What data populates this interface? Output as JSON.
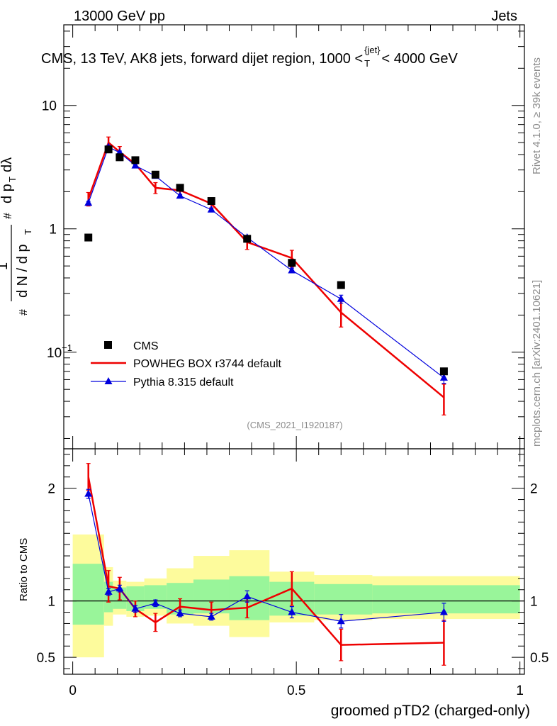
{
  "header": {
    "left": "13000 GeV pp",
    "right": "Jets"
  },
  "side_labels": {
    "rivet": "Rivet 4.1.0, ≥ 39k events",
    "mcplots": "mcplots.cern.ch [arXiv:2401.10621]"
  },
  "watermark": "(CMS_2021_I1920187)",
  "colors": {
    "cms": "#000000",
    "powheg": "#ee0000",
    "pythia": "#0000dd",
    "band_inner": "#99f59a",
    "band_outer": "#fdfb9c"
  },
  "chart_data": [
    {
      "type": "line",
      "title": "CMS, 13 TeV, AK8 jets, forward dijet region, 1000 < p_T^{jet} < 4000 GeV",
      "title_main": "CMS, 13 TeV, AK8 jets, forward dijet region, 1000 <",
      "title_sup": "{jet}",
      "title_sub": "T",
      "title_end": "< 4000 GeV",
      "ylabel": "1/(dN/dp_T) d²N/(dp_T dλ)",
      "yscale": "log",
      "ylim": [
        0.0165,
        45
      ],
      "xlim": [
        -0.02,
        1.01
      ],
      "y_ticks": [
        {
          "value": 10,
          "label": "10"
        },
        {
          "value": 1,
          "label": "1"
        },
        {
          "value": 0.1,
          "label": "10",
          "sup": "−1"
        }
      ],
      "legend": [
        "CMS",
        "POWHEG BOX r3744 default",
        "Pythia 8.315 default"
      ],
      "series": [
        {
          "name": "CMS",
          "style": "markers",
          "x": [
            0.035,
            0.08,
            0.105,
            0.14,
            0.185,
            0.24,
            0.31,
            0.39,
            0.49,
            0.6,
            0.83
          ],
          "y": [
            0.85,
            4.4,
            3.8,
            3.6,
            2.75,
            2.15,
            1.68,
            0.83,
            0.53,
            0.35,
            0.07
          ]
        },
        {
          "name": "POWHEG BOX r3744 default",
          "x": [
            0.035,
            0.08,
            0.105,
            0.14,
            0.185,
            0.24,
            0.31,
            0.39,
            0.49,
            0.6,
            0.83
          ],
          "y": [
            1.75,
            5.0,
            4.2,
            3.35,
            2.15,
            2.05,
            1.6,
            0.78,
            0.58,
            0.21,
            0.043
          ],
          "err": [
            0.22,
            0.55,
            0.45,
            0.2,
            0.22,
            0.15,
            0.12,
            0.1,
            0.09,
            0.05,
            0.012
          ]
        },
        {
          "name": "Pythia 8.315 default",
          "x": [
            0.035,
            0.08,
            0.105,
            0.14,
            0.185,
            0.24,
            0.31,
            0.39,
            0.49,
            0.6,
            0.83
          ],
          "y": [
            1.62,
            4.6,
            4.15,
            3.25,
            2.68,
            1.85,
            1.43,
            0.85,
            0.46,
            0.27,
            0.062
          ],
          "err": [
            0.05,
            0.15,
            0.12,
            0.08,
            0.06,
            0.04,
            0.03,
            0.03,
            0.02,
            0.02,
            0.006
          ]
        }
      ]
    },
    {
      "type": "line",
      "xlabel": "groomed pTD2 (charged-only)",
      "ylabel": "Ratio to CMS",
      "ylim": [
        0.35,
        2.35
      ],
      "xlim": [
        -0.02,
        1.01
      ],
      "y_ticks": [
        0.5,
        1,
        2
      ],
      "x_ticks": [
        0,
        0.5,
        1
      ],
      "x_tick_labels": [
        "0",
        "0.5",
        "1"
      ],
      "bands": {
        "edges": [
          0,
          0.07,
          0.09,
          0.12,
          0.16,
          0.21,
          0.27,
          0.35,
          0.44,
          0.54,
          0.67,
          1.0
        ],
        "inner_low": [
          0.79,
          0.9,
          0.93,
          0.91,
          0.93,
          0.88,
          0.89,
          0.83,
          0.87,
          0.88,
          0.89
        ],
        "inner_high": [
          1.33,
          1.17,
          1.12,
          1.13,
          1.14,
          1.16,
          1.19,
          1.22,
          1.17,
          1.15,
          1.14
        ],
        "outer_low": [
          0.5,
          0.78,
          0.88,
          0.86,
          0.87,
          0.8,
          0.78,
          0.68,
          0.81,
          0.83,
          0.84
        ],
        "outer_high": [
          1.59,
          1.3,
          1.18,
          1.17,
          1.2,
          1.29,
          1.4,
          1.45,
          1.26,
          1.23,
          1.22
        ]
      },
      "series": [
        {
          "name": "POWHEG BOX r3744 default",
          "x": [
            0.035,
            0.08,
            0.105,
            0.14,
            0.185,
            0.24,
            0.31,
            0.39,
            0.49,
            0.6,
            0.83
          ],
          "y": [
            2.1,
            1.13,
            1.11,
            0.93,
            0.81,
            0.95,
            0.92,
            0.94,
            1.11,
            0.61,
            0.63
          ],
          "err": [
            0.12,
            0.14,
            0.1,
            0.07,
            0.08,
            0.07,
            0.07,
            0.09,
            0.15,
            0.14,
            0.2
          ]
        },
        {
          "name": "Pythia 8.315 default",
          "x": [
            0.035,
            0.08,
            0.105,
            0.14,
            0.185,
            0.24,
            0.31,
            0.39,
            0.49,
            0.6,
            0.83
          ],
          "y": [
            1.95,
            1.08,
            1.11,
            0.93,
            0.98,
            0.89,
            0.86,
            1.04,
            0.9,
            0.82,
            0.9
          ],
          "err": [
            0.04,
            0.03,
            0.03,
            0.03,
            0.03,
            0.03,
            0.03,
            0.05,
            0.05,
            0.06,
            0.08
          ]
        }
      ]
    }
  ]
}
